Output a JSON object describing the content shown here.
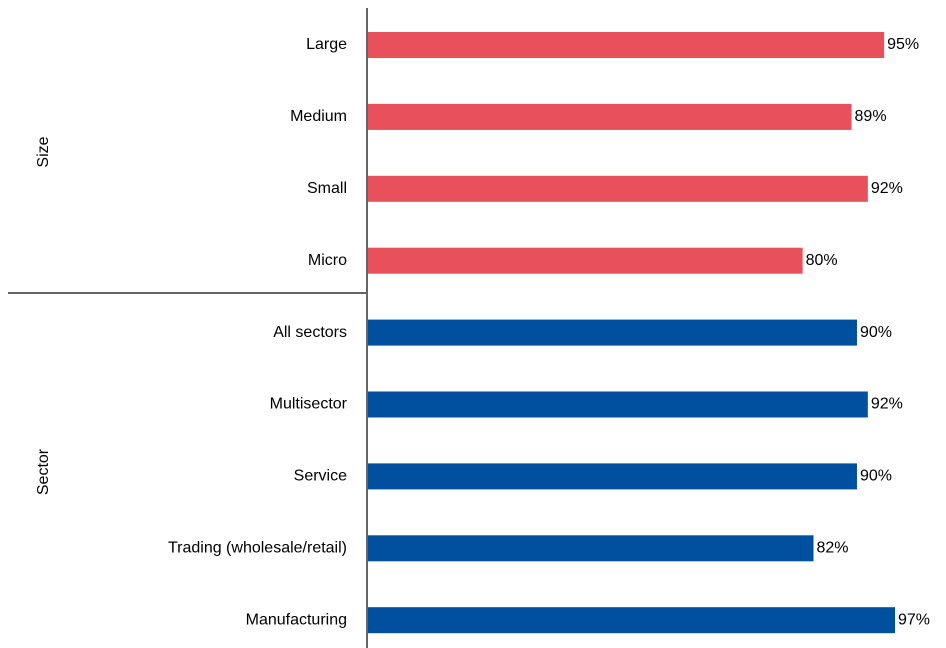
{
  "chart_data": {
    "type": "bar",
    "orientation": "horizontal",
    "title": "",
    "xlabel": "",
    "ylabel": "",
    "value_suffix": "%",
    "xlim": [
      0,
      100
    ],
    "grid": false,
    "legend": "none",
    "groups": [
      {
        "name": "Size",
        "color": "#E8505B",
        "categories": [
          "Large",
          "Medium",
          "Small",
          "Micro"
        ],
        "values": [
          95,
          89,
          92,
          80
        ],
        "value_labels": [
          "95%",
          "89%",
          "92%",
          "80%"
        ]
      },
      {
        "name": "Sector",
        "color": "#0050A0",
        "categories": [
          "All sectors",
          "Multisector",
          "Service",
          "Trading (wholesale/retail)",
          "Manufacturing"
        ],
        "values": [
          90,
          92,
          90,
          82,
          97
        ],
        "value_labels": [
          "90%",
          "92%",
          "90%",
          "82%",
          "97%"
        ]
      }
    ]
  }
}
